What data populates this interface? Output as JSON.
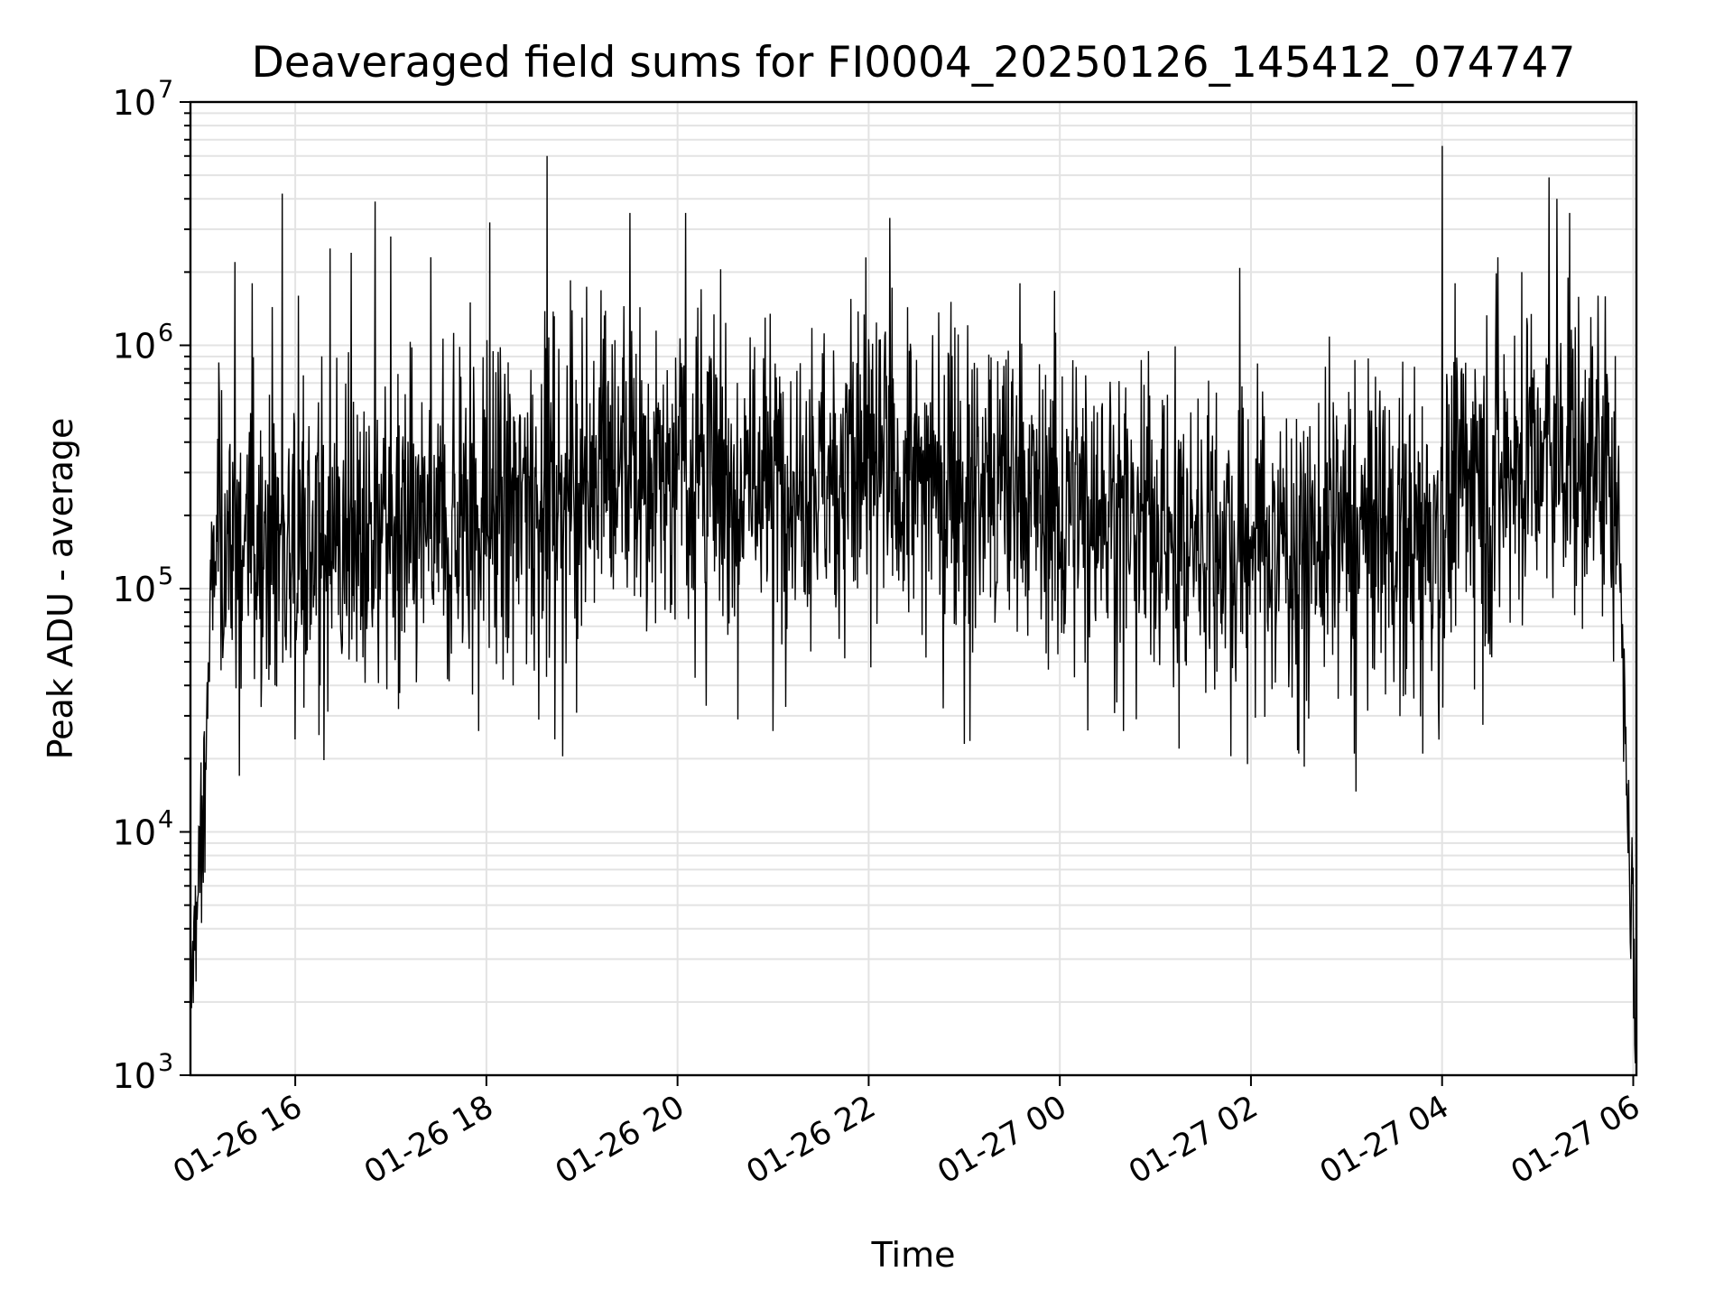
{
  "chart_data": {
    "type": "line",
    "title": "Deaveraged field sums for FI0004_20250126_145412_074747",
    "xlabel": "Time",
    "ylabel": "Peak ADU - average",
    "yscale": "log",
    "ylim": [
      1000,
      10000000
    ],
    "xlim": [
      "2025-01-26 14:54:12",
      "2025-01-27 06:02:00"
    ],
    "grid": true,
    "legend": "none",
    "line_color": "#000000",
    "x_ticks": [
      "01-26 16",
      "01-26 18",
      "01-26 20",
      "01-26 22",
      "01-27 00",
      "01-27 02",
      "01-27 04",
      "01-27 06"
    ],
    "y_ticks": [
      {
        "value": 1000,
        "base": "10",
        "exp": "3"
      },
      {
        "value": 10000,
        "base": "10",
        "exp": "4"
      },
      {
        "value": 100000,
        "base": "10",
        "exp": "5"
      },
      {
        "value": 1000000,
        "base": "10",
        "exp": "6"
      },
      {
        "value": 10000000,
        "base": "10",
        "exp": "7"
      }
    ],
    "series": [
      {
        "x": [
          "2025-01-26 14:54:12",
          "2025-01-26 14:58",
          "2025-01-26 15:02",
          "2025-01-26 15:06",
          "2025-01-26 15:10",
          "2025-01-26 15:15",
          "2025-01-26 15:20",
          "2025-01-26 15:30",
          "2025-01-26 15:45",
          "2025-01-26 16:00",
          "2025-01-26 16:15",
          "2025-01-26 16:30",
          "2025-01-26 16:45",
          "2025-01-26 17:00",
          "2025-01-26 17:15",
          "2025-01-26 17:30",
          "2025-01-26 17:45",
          "2025-01-26 18:00",
          "2025-01-26 18:15",
          "2025-01-26 18:30",
          "2025-01-26 18:45",
          "2025-01-26 19:00",
          "2025-01-26 19:15",
          "2025-01-26 19:30",
          "2025-01-26 19:45",
          "2025-01-26 20:00",
          "2025-01-26 20:15",
          "2025-01-26 20:30",
          "2025-01-26 20:45",
          "2025-01-26 21:00",
          "2025-01-26 21:15",
          "2025-01-26 21:30",
          "2025-01-26 21:45",
          "2025-01-26 22:00",
          "2025-01-26 22:15",
          "2025-01-26 22:30",
          "2025-01-26 22:45",
          "2025-01-26 23:00",
          "2025-01-26 23:15",
          "2025-01-26 23:30",
          "2025-01-26 23:45",
          "2025-01-27 00:00",
          "2025-01-27 00:15",
          "2025-01-27 00:30",
          "2025-01-27 00:45",
          "2025-01-27 01:00",
          "2025-01-27 01:15",
          "2025-01-27 01:30",
          "2025-01-27 01:45",
          "2025-01-27 02:00",
          "2025-01-27 02:15",
          "2025-01-27 02:30",
          "2025-01-27 02:45",
          "2025-01-27 03:00",
          "2025-01-27 03:15",
          "2025-01-27 03:30",
          "2025-01-27 03:45",
          "2025-01-27 04:00",
          "2025-01-27 04:15",
          "2025-01-27 04:30",
          "2025-01-27 04:45",
          "2025-01-27 05:00",
          "2025-01-27 05:15",
          "2025-01-27 05:30",
          "2025-01-27 05:45",
          "2025-01-27 05:50",
          "2025-01-27 05:53",
          "2025-01-27 05:56",
          "2025-01-27 05:59",
          "2025-01-27 06:02"
        ],
        "baseline": [
          1800,
          5000,
          9000,
          60000,
          150000,
          150000,
          160000,
          160000,
          170000,
          150000,
          130000,
          140000,
          160000,
          170000,
          180000,
          170000,
          190000,
          210000,
          240000,
          260000,
          270000,
          280000,
          300000,
          320000,
          330000,
          320000,
          310000,
          300000,
          290000,
          290000,
          300000,
          310000,
          310000,
          320000,
          310000,
          300000,
          280000,
          260000,
          260000,
          250000,
          240000,
          230000,
          220000,
          210000,
          200000,
          190000,
          180000,
          170000,
          170000,
          165000,
          160000,
          160000,
          160000,
          160000,
          165000,
          170000,
          175000,
          180000,
          260000,
          280000,
          300000,
          320000,
          330000,
          340000,
          350000,
          300000,
          60000,
          15000,
          5000,
          1500
        ],
        "peaks": [
          {
            "x": "2025-01-26 15:12",
            "y": 850000
          },
          {
            "x": "2025-01-26 15:22",
            "y": 2200000
          },
          {
            "x": "2025-01-26 15:33",
            "y": 1800000
          },
          {
            "x": "2025-01-26 15:52",
            "y": 4200000
          },
          {
            "x": "2025-01-26 16:02",
            "y": 1600000
          },
          {
            "x": "2025-01-26 16:22",
            "y": 2500000
          },
          {
            "x": "2025-01-26 16:35",
            "y": 2400000
          },
          {
            "x": "2025-01-26 16:50",
            "y": 3900000
          },
          {
            "x": "2025-01-26 17:00",
            "y": 2800000
          },
          {
            "x": "2025-01-26 17:25",
            "y": 2300000
          },
          {
            "x": "2025-01-26 17:50",
            "y": 1500000
          },
          {
            "x": "2025-01-26 18:02",
            "y": 3200000
          },
          {
            "x": "2025-01-26 18:38",
            "y": 6000000
          },
          {
            "x": "2025-01-26 19:00",
            "y": 1300000
          },
          {
            "x": "2025-01-26 19:30",
            "y": 3500000
          },
          {
            "x": "2025-01-26 20:05",
            "y": 3500000
          },
          {
            "x": "2025-01-26 20:15",
            "y": 1700000
          },
          {
            "x": "2025-01-26 22:40",
            "y": 1100000
          },
          {
            "x": "2025-01-26 23:35",
            "y": 1800000
          },
          {
            "x": "2025-01-27 04:00",
            "y": 6600000
          },
          {
            "x": "2025-01-27 04:08",
            "y": 1800000
          },
          {
            "x": "2025-01-27 04:35",
            "y": 2300000
          },
          {
            "x": "2025-01-27 04:50",
            "y": 2000000
          },
          {
            "x": "2025-01-27 05:07",
            "y": 4900000
          },
          {
            "x": "2025-01-27 05:12",
            "y": 4000000
          },
          {
            "x": "2025-01-27 05:20",
            "y": 3500000
          },
          {
            "x": "2025-01-27 05:38",
            "y": 1600000
          }
        ],
        "dips": [
          {
            "x": "2025-01-26 15:25",
            "y": 17000
          },
          {
            "x": "2025-01-26 16:00",
            "y": 24000
          },
          {
            "x": "2025-01-26 16:15",
            "y": 25000
          },
          {
            "x": "2025-01-26 17:05",
            "y": 32000
          },
          {
            "x": "2025-01-26 17:55",
            "y": 26000
          },
          {
            "x": "2025-01-26 18:43",
            "y": 24000
          },
          {
            "x": "2025-01-26 20:18",
            "y": 33000
          },
          {
            "x": "2025-01-26 20:38",
            "y": 29000
          },
          {
            "x": "2025-01-26 21:00",
            "y": 26000
          },
          {
            "x": "2025-01-26 23:00",
            "y": 23000
          },
          {
            "x": "2025-01-27 00:40",
            "y": 26000
          },
          {
            "x": "2025-01-27 01:15",
            "y": 22000
          },
          {
            "x": "2025-01-27 01:58",
            "y": 19000
          },
          {
            "x": "2025-01-27 02:30",
            "y": 21000
          },
          {
            "x": "2025-01-27 03:05",
            "y": 21000
          },
          {
            "x": "2025-01-27 03:48",
            "y": 21000
          }
        ]
      }
    ]
  }
}
